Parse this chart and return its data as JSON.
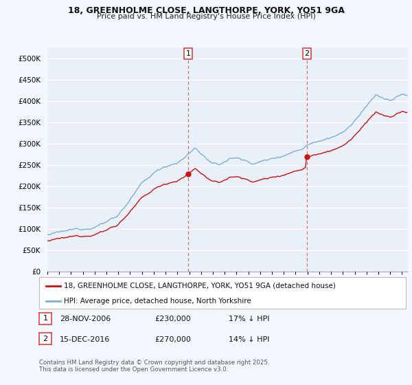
{
  "title_line1": "18, GREENHOLME CLOSE, LANGTHORPE, YORK, YO51 9GA",
  "title_line2": "Price paid vs. HM Land Registry's House Price Index (HPI)",
  "ylabel_ticks": [
    "£0",
    "£50K",
    "£100K",
    "£150K",
    "£200K",
    "£250K",
    "£300K",
    "£350K",
    "£400K",
    "£450K",
    "£500K"
  ],
  "ytick_vals": [
    0,
    50000,
    100000,
    150000,
    200000,
    250000,
    300000,
    350000,
    400000,
    450000,
    500000
  ],
  "ylim": [
    0,
    525000
  ],
  "xlim_start": 1995.0,
  "xlim_end": 2025.5,
  "hpi_color": "#7ab0d4",
  "price_color": "#cc1111",
  "vline_color": "#dd4444",
  "background_color": "#f5f7ff",
  "plot_bg": "#eaf0f8",
  "sale1_x": 2006.92,
  "sale1_y": 230000,
  "sale2_x": 2016.96,
  "sale2_y": 270000,
  "legend_label1": "18, GREENHOLME CLOSE, LANGTHORPE, YORK, YO51 9GA (detached house)",
  "legend_label2": "HPI: Average price, detached house, North Yorkshire",
  "table_row1": [
    "1",
    "28-NOV-2006",
    "£230,000",
    "17% ↓ HPI"
  ],
  "table_row2": [
    "2",
    "15-DEC-2016",
    "£270,000",
    "14% ↓ HPI"
  ],
  "footer": "Contains HM Land Registry data © Crown copyright and database right 2025.\nThis data is licensed under the Open Government Licence v3.0.",
  "xtick_years": [
    1995,
    1996,
    1997,
    1998,
    1999,
    2000,
    2001,
    2002,
    2003,
    2004,
    2005,
    2006,
    2007,
    2008,
    2009,
    2010,
    2011,
    2012,
    2013,
    2014,
    2015,
    2016,
    2017,
    2018,
    2019,
    2020,
    2021,
    2022,
    2023,
    2024,
    2025
  ]
}
